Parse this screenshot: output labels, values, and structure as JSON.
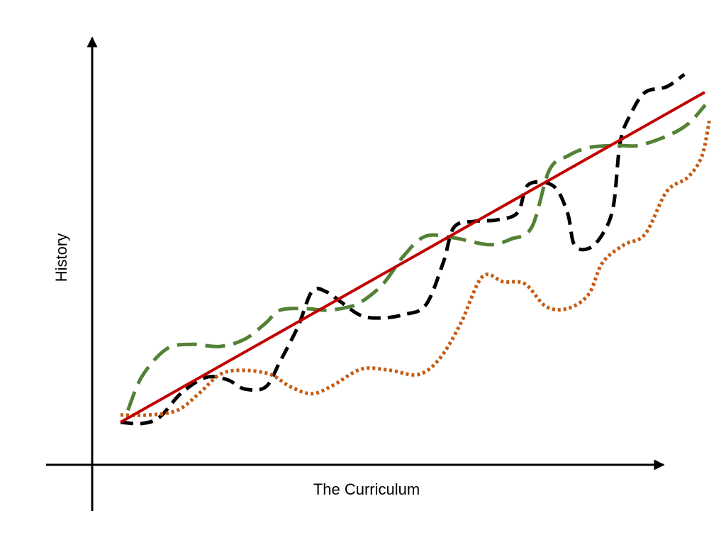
{
  "chart_data": {
    "type": "line",
    "x_label": "The Curriculum",
    "y_label": "History",
    "xlim": [
      0,
      110
    ],
    "ylim": [
      0,
      100
    ],
    "series": [
      {
        "color": "#000000",
        "dash": "dashed",
        "x": [
          5,
          8.75,
          11.9,
          15.6,
          20,
          23.8,
          26.9,
          30.6,
          33.1,
          36.3,
          38.8,
          41.5,
          43.8,
          47.5,
          51.3,
          55,
          58.8,
          61.9,
          63.8,
          67.5,
          71.3,
          75,
          76.9,
          81.3,
          83.8,
          85,
          87.5,
          90,
          91.9,
          93.1,
          95,
          97.5,
          101.3,
          104.4
        ],
        "values": [
          10,
          9.7,
          11.2,
          16.7,
          20.5,
          20,
          17.8,
          18.3,
          24.2,
          32.5,
          40.8,
          40.5,
          38.3,
          35,
          34.5,
          35.3,
          37.5,
          47.5,
          55.8,
          57.2,
          57.5,
          59.2,
          65.8,
          65.5,
          59.2,
          51.7,
          50.8,
          54.2,
          60.8,
          75.8,
          82.5,
          87.5,
          88.8,
          91.7
        ]
      },
      {
        "color": "#538135",
        "dash": "long-dashed",
        "x": [
          6.3,
          8.8,
          13.1,
          17.5,
          22.5,
          26.9,
          30.6,
          33.1,
          37.5,
          41.3,
          45,
          47.5,
          51.3,
          55,
          58.8,
          63.8,
          70,
          73.8,
          77.5,
          80.6,
          83.8,
          87.5,
          92.5,
          96.3,
          101.3,
          105,
          108.1
        ],
        "values": [
          12.8,
          20.8,
          27.2,
          28.3,
          27.8,
          29.5,
          33.3,
          36.3,
          36.7,
          36.3,
          37,
          38.3,
          42.5,
          49.2,
          53.7,
          53.3,
          51.7,
          53,
          55.8,
          69.2,
          72.5,
          74.5,
          75,
          75,
          77.2,
          80,
          84.5
        ]
      },
      {
        "color": "#c55a11",
        "dash": "dotted",
        "x": [
          5,
          10,
          15,
          18.8,
          22.5,
          26.3,
          31.3,
          35,
          38.8,
          42.5,
          47.5,
          52.5,
          57.5,
          61.3,
          65,
          68.8,
          72.5,
          76.3,
          80,
          83.8,
          87.5,
          90,
          93.8,
          97.5,
          101.3,
          105,
          107.5,
          108.8
        ],
        "values": [
          11.7,
          11.7,
          12.8,
          16.7,
          21.2,
          22.2,
          21.3,
          18.3,
          16.7,
          18.7,
          22.5,
          22.2,
          21.2,
          25,
          33.3,
          44.2,
          43,
          42.5,
          37.2,
          36.7,
          40,
          47.5,
          51.7,
          54.2,
          64.2,
          67.5,
          72.5,
          80.8
        ]
      },
      {
        "color": "#c00000",
        "dash": "solid",
        "x": [
          5,
          108
        ],
        "values": [
          10,
          87.5
        ]
      }
    ]
  }
}
